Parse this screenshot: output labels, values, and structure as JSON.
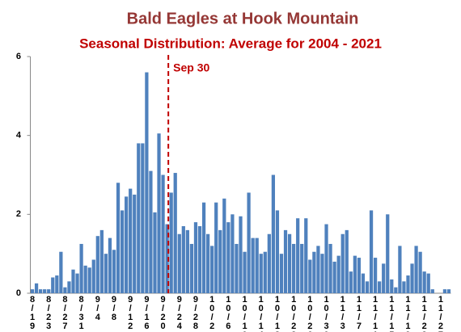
{
  "chart_data": {
    "type": "bar",
    "title": "Bald Eagles at Hook Mountain",
    "subtitle": "Seasonal Distribution: Average for 2004 - 2021",
    "annotation": "Sep 30",
    "color": "#4f81bd",
    "grid": false,
    "ylim": [
      0,
      6
    ],
    "yticks": [
      0,
      2,
      4,
      6
    ],
    "categories": [
      "8/19",
      null,
      null,
      null,
      "8/23",
      null,
      null,
      null,
      "8/27",
      null,
      null,
      null,
      "8/31",
      null,
      null,
      null,
      "9/4",
      null,
      null,
      null,
      "9/8",
      null,
      null,
      null,
      "9/12",
      null,
      null,
      null,
      "9/16",
      null,
      null,
      null,
      "9/20",
      null,
      null,
      null,
      "9/24",
      null,
      null,
      null,
      "9/28",
      null,
      null,
      null,
      "10/2",
      null,
      null,
      null,
      "10/6",
      null,
      null,
      null,
      "10/10",
      null,
      null,
      null,
      "10/14",
      null,
      null,
      null,
      "10/18",
      null,
      null,
      null,
      "10/22",
      null,
      null,
      null,
      "10/26",
      null,
      null,
      null,
      "10/30",
      null,
      null,
      null,
      "11/3",
      null,
      null,
      null,
      "11/7",
      null,
      null,
      null,
      "11/11",
      null,
      null,
      null,
      "11/15",
      null,
      null,
      null,
      "11/19",
      null,
      null,
      null,
      "11/23",
      null,
      null,
      null,
      "11/27",
      null,
      null
    ],
    "values": [
      0.1,
      0.25,
      0.1,
      0.1,
      0.1,
      0.4,
      0.45,
      1.05,
      0.15,
      0.3,
      0.6,
      0.5,
      1.25,
      0.7,
      0.65,
      0.85,
      1.45,
      1.6,
      1.0,
      1.4,
      1.1,
      2.8,
      2.1,
      2.45,
      2.65,
      2.5,
      3.8,
      3.8,
      5.6,
      3.1,
      2.05,
      4.05,
      3.0,
      1.75,
      2.55,
      3.05,
      1.5,
      1.7,
      1.6,
      1.25,
      1.8,
      1.7,
      2.3,
      1.5,
      1.2,
      2.3,
      1.6,
      2.4,
      1.8,
      2.0,
      1.25,
      1.95,
      1.05,
      2.55,
      1.4,
      1.4,
      1.0,
      1.05,
      1.5,
      3.0,
      2.1,
      1.0,
      1.6,
      1.5,
      1.25,
      1.9,
      1.25,
      1.9,
      0.85,
      1.05,
      1.2,
      1.0,
      1.75,
      1.25,
      0.8,
      0.95,
      1.5,
      1.6,
      0.55,
      0.95,
      0.9,
      0.5,
      0.3,
      2.1,
      0.9,
      0.3,
      0.75,
      2.0,
      0.35,
      0.15,
      1.2,
      0.3,
      0.45,
      0.75,
      1.2,
      1.05,
      0.55,
      0.5,
      0.1,
      0,
      0,
      0.1,
      0.1
    ]
  }
}
